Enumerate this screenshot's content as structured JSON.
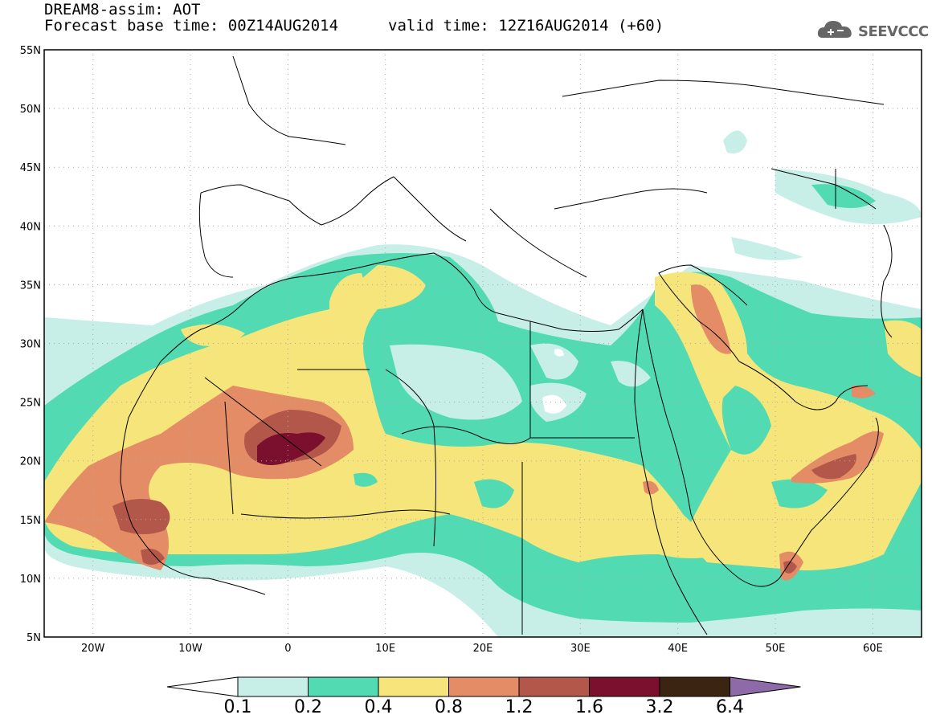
{
  "header": {
    "title": "DREAM8-assim: AOT",
    "base_time": "Forecast base time: 00Z14AUG2014",
    "valid_time": "valid time: 12Z16AUG2014 (+60)",
    "logo_text": "SEEVCCC",
    "logo_icon": "cloud-icon"
  },
  "map": {
    "lon_range": [
      -25,
      65
    ],
    "lat_range": [
      5,
      55
    ],
    "lat_labels": [
      "5N",
      "10N",
      "15N",
      "20N",
      "25N",
      "30N",
      "35N",
      "40N",
      "45N",
      "50N",
      "55N"
    ],
    "lon_labels": [
      "20W",
      "10W",
      "0",
      "10E",
      "20E",
      "30E",
      "40E",
      "50E",
      "60E"
    ],
    "grid": "dotted"
  },
  "colorbar": {
    "levels": [
      "0.1",
      "0.2",
      "0.4",
      "0.8",
      "1.2",
      "1.6",
      "3.2",
      "6.4"
    ],
    "colors": [
      "#c8efe7",
      "#52dbb3",
      "#f6e57a",
      "#e38c66",
      "#b2574a",
      "#7a0f2e",
      "#3c2412",
      "#8f6aa8"
    ],
    "under_color": "#ffffff"
  },
  "chart_data": {
    "type": "heatmap",
    "title": "DREAM8-assim: AOT",
    "variable": "AOT",
    "forecast_base": "00Z14AUG2014",
    "valid_time": "12Z16AUG2014",
    "lead_hours": 60,
    "levels": [
      0.1,
      0.2,
      0.4,
      0.8,
      1.2,
      1.6,
      3.2,
      6.4
    ],
    "x_range": [
      -25,
      65
    ],
    "y_range": [
      5,
      55
    ]
  }
}
